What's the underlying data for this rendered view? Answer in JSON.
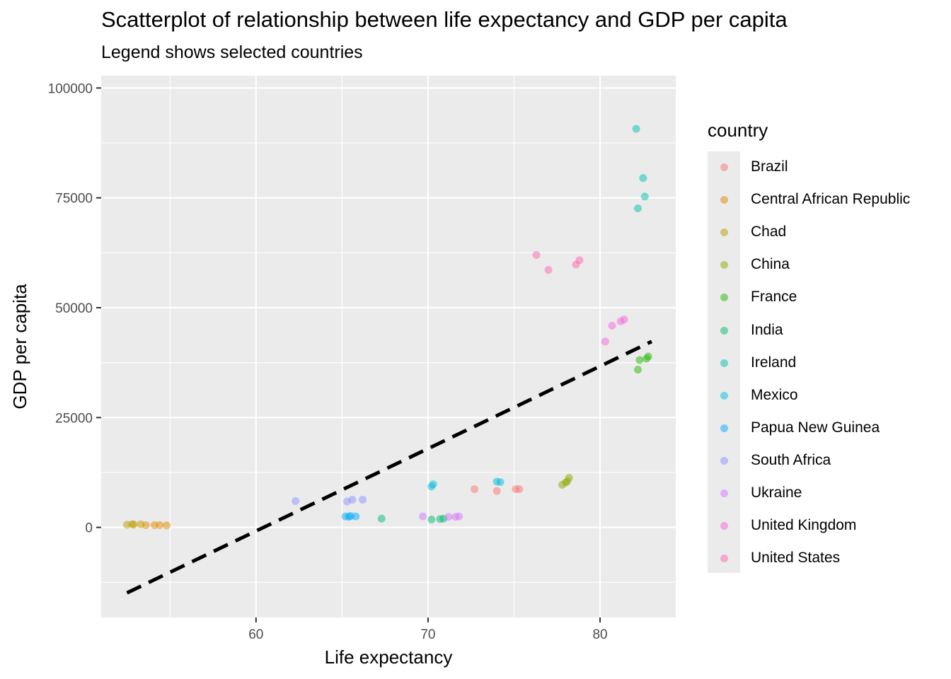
{
  "chart_data": {
    "type": "scatter",
    "title": "Scatterplot of relationship between life expectancy and GDP per capita",
    "subtitle": "Legend shows selected countries",
    "xlabel": "Life expectancy",
    "ylabel": "GDP per capita",
    "xlim": [
      51.0,
      84.4
    ],
    "ylim": [
      -20500,
      102800
    ],
    "x_ticks": [
      60,
      70,
      80
    ],
    "y_ticks": [
      0,
      25000,
      50000,
      75000,
      100000
    ],
    "x_tick_labels": [
      "60",
      "70",
      "80"
    ],
    "y_tick_labels": [
      "0",
      "25000",
      "50000",
      "75000",
      "100000"
    ],
    "grid": true,
    "legend": {
      "title": "country",
      "position": "right"
    },
    "trend_line": {
      "style": "dashed",
      "color": "#000000",
      "from": [
        52.5,
        -14900
      ],
      "to": [
        83.0,
        42300
      ]
    },
    "series": [
      {
        "name": "Brazil",
        "color": "#F8766D",
        "points": [
          [
            72.7,
            8700
          ],
          [
            74.0,
            8300
          ],
          [
            75.1,
            8700
          ],
          [
            75.3,
            8700
          ]
        ]
      },
      {
        "name": "Central African Republic",
        "color": "#E18A00",
        "points": [
          [
            53.6,
            500
          ],
          [
            54.1,
            500
          ],
          [
            54.4,
            500
          ],
          [
            54.8,
            450
          ]
        ]
      },
      {
        "name": "Chad",
        "color": "#BE9C00",
        "points": [
          [
            52.5,
            600
          ],
          [
            52.8,
            700
          ],
          [
            52.9,
            650
          ],
          [
            53.3,
            700
          ]
        ]
      },
      {
        "name": "China",
        "color": "#8CAB00",
        "points": [
          [
            77.8,
            9700
          ],
          [
            78.0,
            10200
          ],
          [
            78.1,
            10500
          ],
          [
            78.2,
            11300
          ]
        ]
      },
      {
        "name": "France",
        "color": "#24B700",
        "points": [
          [
            82.2,
            35900
          ],
          [
            82.3,
            38100
          ],
          [
            82.7,
            38400
          ],
          [
            82.8,
            38900
          ]
        ]
      },
      {
        "name": "India",
        "color": "#00BE70",
        "points": [
          [
            67.3,
            2000
          ],
          [
            70.2,
            1800
          ],
          [
            70.7,
            1900
          ],
          [
            70.9,
            2000
          ]
        ]
      },
      {
        "name": "Ireland",
        "color": "#00C1AB",
        "points": [
          [
            82.1,
            90700
          ],
          [
            82.2,
            72600
          ],
          [
            82.5,
            79500
          ],
          [
            82.6,
            75300
          ]
        ]
      },
      {
        "name": "Mexico",
        "color": "#00BBDA",
        "points": [
          [
            70.2,
            9300
          ],
          [
            70.3,
            9800
          ],
          [
            74.0,
            10400
          ],
          [
            74.2,
            10300
          ]
        ]
      },
      {
        "name": "Papua New Guinea",
        "color": "#00ACFC",
        "points": [
          [
            65.2,
            2500
          ],
          [
            65.4,
            2400
          ],
          [
            65.5,
            2600
          ],
          [
            65.8,
            2500
          ]
        ]
      },
      {
        "name": "South Africa",
        "color": "#8B93FF",
        "points": [
          [
            62.3,
            6000
          ],
          [
            65.3,
            5900
          ],
          [
            65.6,
            6300
          ],
          [
            66.2,
            6300
          ]
        ]
      },
      {
        "name": "Ukraine",
        "color": "#D575FE",
        "points": [
          [
            69.7,
            2500
          ],
          [
            71.2,
            2400
          ],
          [
            71.6,
            2400
          ],
          [
            71.8,
            2500
          ]
        ]
      },
      {
        "name": "United Kingdom",
        "color": "#F962DD",
        "points": [
          [
            80.3,
            42300
          ],
          [
            80.7,
            45900
          ],
          [
            81.2,
            46900
          ],
          [
            81.4,
            47300
          ]
        ]
      },
      {
        "name": "United States",
        "color": "#FF65AC",
        "points": [
          [
            76.3,
            62000
          ],
          [
            77.0,
            58600
          ],
          [
            78.6,
            59800
          ],
          [
            78.8,
            60800
          ]
        ]
      }
    ]
  }
}
